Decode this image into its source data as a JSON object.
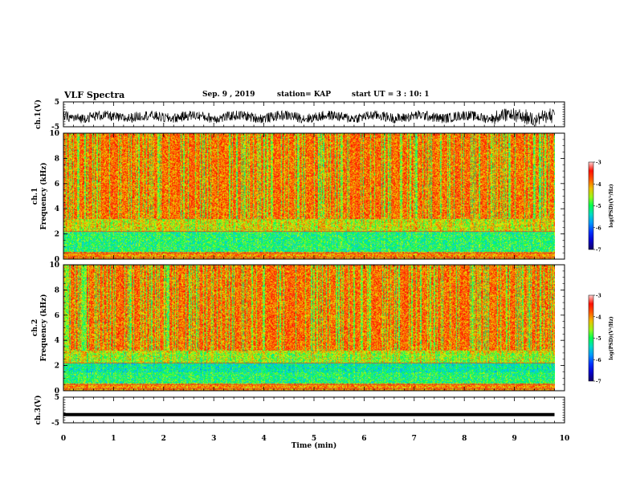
{
  "header": {
    "title": "VLF Spectra",
    "date": "Sep. 9 , 2019",
    "station": "station= KAP",
    "start": "start  UT =   3 : 10: 1"
  },
  "chart_data": [
    {
      "type": "line",
      "panel": "ch1-voltage",
      "ylabel": "ch.1(V)",
      "ylim": [
        -5,
        5
      ],
      "yticks": [
        "5",
        "-5"
      ],
      "x_range_min": [
        0,
        10
      ],
      "data_end_min": 9.8,
      "description_of_trace": "noisy waveform around -1 V"
    },
    {
      "type": "heatmap",
      "panel": "ch1-spectrogram",
      "ylabel": "ch.1\nFrequency (kHz)",
      "ylim": [
        0,
        10
      ],
      "yticks": [
        "0",
        "2",
        "4",
        "6",
        "8",
        "10"
      ],
      "x_range_min": [
        0,
        10
      ],
      "data_end_min": 9.8,
      "colorbar": {
        "label": "log(PSD)(V²/Hz)",
        "range": [
          -7,
          -3
        ],
        "ticks": [
          "-3",
          "-4",
          "-5",
          "-6",
          "-7"
        ]
      }
    },
    {
      "type": "heatmap",
      "panel": "ch2-spectrogram",
      "ylabel": "ch.2\nFrequency (kHz)",
      "ylim": [
        0,
        10
      ],
      "yticks": [
        "0",
        "2",
        "4",
        "6",
        "8",
        "10"
      ],
      "x_range_min": [
        0,
        10
      ],
      "data_end_min": 9.8,
      "colorbar": {
        "label": "log(PSD)(V²/Hz)",
        "range": [
          -7,
          -3
        ],
        "ticks": [
          "-3",
          "-4",
          "-5",
          "-6",
          "-7"
        ]
      }
    },
    {
      "type": "line",
      "panel": "ch3-voltage",
      "ylabel": "ch.3(V)",
      "ylim": [
        -5,
        5
      ],
      "yticks": [
        "5",
        "-5"
      ],
      "x_range_min": [
        0,
        10
      ],
      "data_end_min": 9.8,
      "constant_value_V": -1.8
    }
  ],
  "xaxis": {
    "label": "Time (min)",
    "ticks": [
      "0",
      "1",
      "2",
      "3",
      "4",
      "5",
      "6",
      "7",
      "8",
      "9",
      "10"
    ]
  }
}
